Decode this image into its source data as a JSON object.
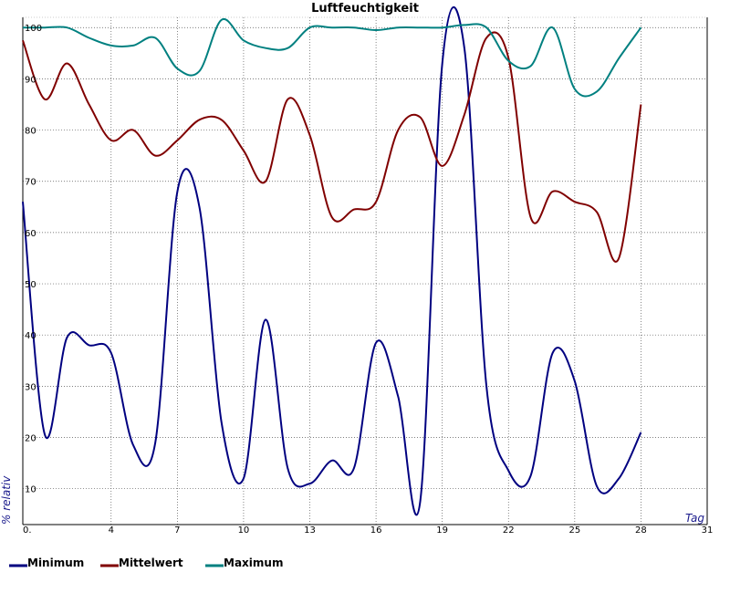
{
  "chart_data": {
    "type": "line",
    "title": "Luftfeuchtigkeit",
    "xlabel": "Tag",
    "ylabel": "% relativ",
    "xlim": [
      0,
      31
    ],
    "ylim": [
      3,
      102
    ],
    "x_ticks": [
      0,
      4,
      7,
      10,
      13,
      16,
      19,
      22,
      25,
      28,
      31
    ],
    "x_tick_labels": [
      "0.",
      "4",
      "7",
      "10",
      "13",
      "16",
      "19",
      "22",
      "25",
      "28",
      "31"
    ],
    "y_ticks": [
      10,
      20,
      30,
      40,
      50,
      60,
      70,
      80,
      90,
      100
    ],
    "grid": true,
    "legend_position": "bottom-left",
    "x": [
      0,
      1,
      2,
      3,
      4,
      5,
      6,
      7,
      8,
      9,
      10,
      11,
      12,
      13,
      14,
      15,
      16,
      17,
      18,
      19,
      20,
      21,
      22,
      23,
      24,
      25,
      26,
      27,
      28
    ],
    "series": [
      {
        "name": "Minimum",
        "color": "#000080",
        "values": [
          66,
          20.5,
          39.5,
          38,
          36.5,
          18.5,
          19,
          68,
          65,
          23,
          12,
          43,
          14,
          11,
          15.5,
          14,
          38.5,
          28,
          7.5,
          93,
          96,
          30,
          13.5,
          12.5,
          36.5,
          31,
          10.5,
          12,
          21
        ]
      },
      {
        "name": "Mittelwert",
        "color": "#800000",
        "values": [
          97.5,
          86,
          93,
          85,
          78,
          80,
          75,
          78,
          82,
          82,
          76,
          70,
          86,
          79,
          63,
          64.5,
          66,
          80,
          82.5,
          73,
          83,
          98,
          94,
          63,
          68,
          66,
          64,
          55,
          85
        ]
      },
      {
        "name": "Maximum",
        "color": "#008080",
        "values": [
          100,
          100,
          100,
          98,
          96.5,
          96.5,
          98,
          92,
          91.5,
          101.5,
          97.5,
          96,
          96,
          100,
          100,
          100,
          99.5,
          100,
          100,
          100,
          100.5,
          100,
          93.5,
          92.5,
          100,
          88,
          87.5,
          94,
          100
        ]
      }
    ]
  }
}
